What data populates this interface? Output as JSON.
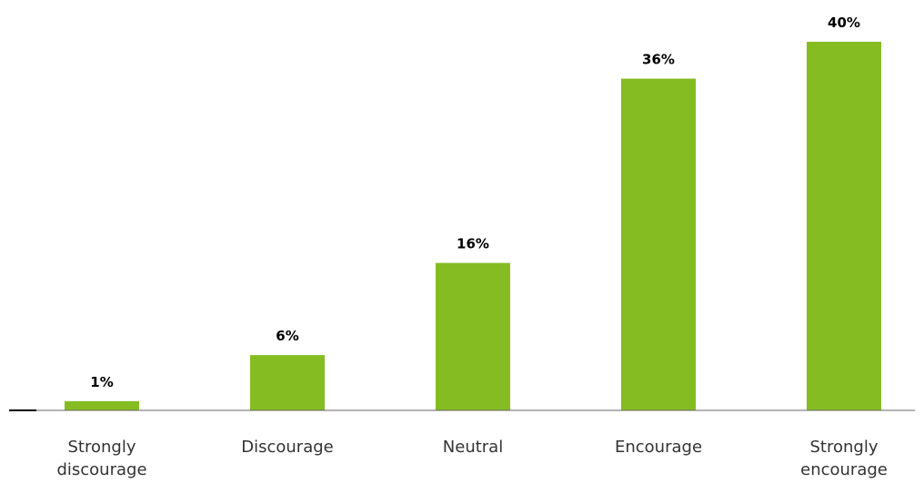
{
  "chart_data": {
    "type": "bar",
    "categories": [
      [
        "Strongly",
        "discourage"
      ],
      [
        "Discourage"
      ],
      [
        "Neutral"
      ],
      [
        "Encourage"
      ],
      [
        "Strongly",
        "encourage"
      ]
    ],
    "values": [
      1,
      6,
      16,
      36,
      40
    ],
    "value_labels": [
      "1%",
      "6%",
      "16%",
      "36%",
      "40%"
    ],
    "ylim": [
      0,
      40
    ],
    "grid": false,
    "bar_color": "#85bc22",
    "title": "",
    "xlabel": "",
    "ylabel": ""
  }
}
